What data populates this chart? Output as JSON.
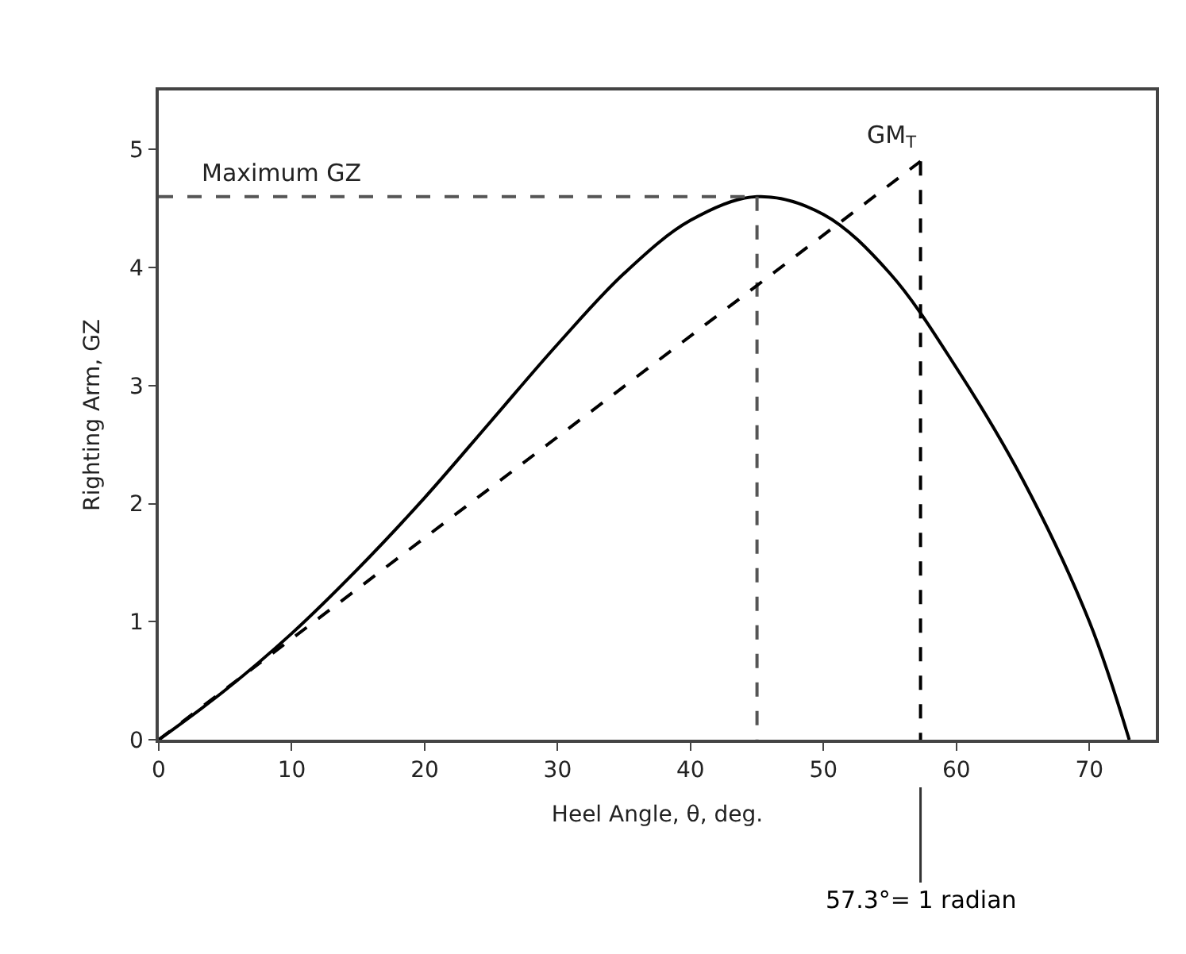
{
  "chart_data": {
    "type": "line",
    "xlabel": "Heel Angle, θ, deg.",
    "ylabel": "Righting Arm, GZ",
    "xlim": [
      0,
      75
    ],
    "xticks": [
      0,
      10,
      20,
      30,
      40,
      50,
      60,
      70
    ],
    "ylim": [
      0,
      5.5
    ],
    "yticks": [
      0,
      1,
      2,
      3,
      4,
      5
    ],
    "legend": false,
    "series": [
      {
        "color": "#000000",
        "line_style": "solid",
        "x": [
          0,
          5,
          10,
          15,
          20,
          25,
          30,
          35,
          40,
          45,
          50,
          55,
          60,
          65,
          70,
          73
        ],
        "values": [
          0,
          0.42,
          0.9,
          1.45,
          2.05,
          2.7,
          3.35,
          3.95,
          4.4,
          4.6,
          4.45,
          3.95,
          3.15,
          2.2,
          1.0,
          0
        ]
      },
      {
        "name": "Maximum GZ",
        "color": "#555555",
        "line_style": "dashed",
        "x": [
          0,
          45
        ],
        "values": [
          4.6,
          4.6
        ]
      },
      {
        "color": "#555555",
        "line_style": "dashed",
        "x": [
          45,
          45
        ],
        "values": [
          4.6,
          0
        ]
      },
      {
        "name": "GM$_{T}$",
        "color": "#000000",
        "line_style": "dashed",
        "x": [
          0,
          57.3
        ],
        "values": [
          0,
          4.9
        ]
      },
      {
        "color": "#000000",
        "line_style": "dashed",
        "x": [
          57.3,
          57.3
        ],
        "values": [
          4.9,
          0
        ]
      }
    ],
    "annotations": [
      {
        "text": "57.3°= 1 radian",
        "x": 57.3,
        "y": 0
      }
    ]
  }
}
